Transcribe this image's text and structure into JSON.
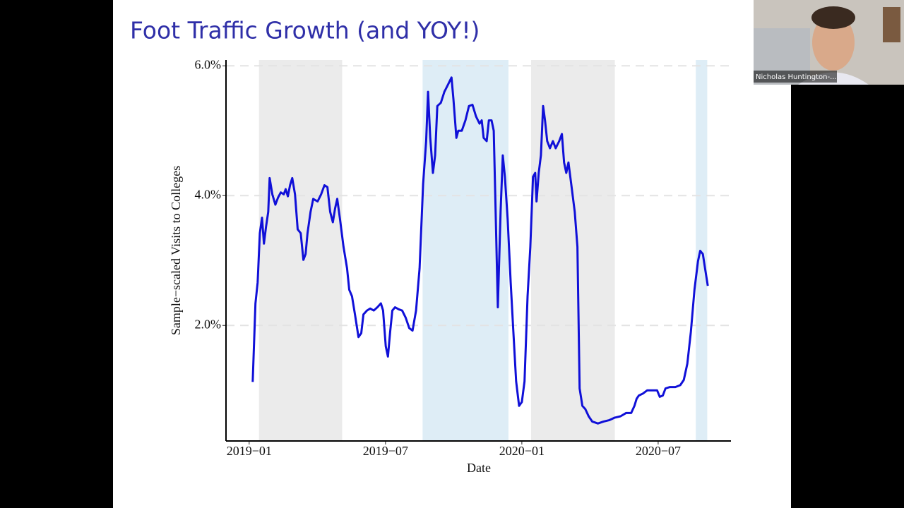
{
  "chart_data": {
    "type": "line",
    "title": "Foot Traffic Growth (and YOY!)",
    "xlabel": "Date",
    "ylabel": "Sample−scaled Visits to Colleges",
    "color": "#1010d8",
    "xlim": [
      2018.915,
      2020.767
    ],
    "xticks": [
      {
        "value": 2019.0,
        "label": "2019−01"
      },
      {
        "value": 2019.5,
        "label": "2019−07"
      },
      {
        "value": 2020.0,
        "label": "2020−01"
      },
      {
        "value": 2020.5,
        "label": "2020−07"
      }
    ],
    "ylim": [
      0.22,
      6.09
    ],
    "yticks": [
      {
        "value": 2,
        "label": "2.0%"
      },
      {
        "value": 4,
        "label": "4.0%"
      },
      {
        "value": 6,
        "label": "6.0%"
      }
    ],
    "grid": true,
    "bands": [
      {
        "start": 2019.036,
        "end": 2019.341,
        "color": "#ebebeb"
      },
      {
        "start": 2019.636,
        "end": 2019.951,
        "color": "#deedf6"
      },
      {
        "start": 2020.034,
        "end": 2020.341,
        "color": "#ebebeb"
      },
      {
        "start": 2020.638,
        "end": 2020.68,
        "color": "#deedf6"
      }
    ],
    "x": [
      2019.013,
      2019.023,
      2019.031,
      2019.039,
      2019.047,
      2019.054,
      2019.062,
      2019.07,
      2019.075,
      2019.085,
      2019.096,
      2019.106,
      2019.116,
      2019.127,
      2019.134,
      2019.142,
      2019.15,
      2019.158,
      2019.168,
      2019.178,
      2019.189,
      2019.199,
      2019.207,
      2019.214,
      2019.225,
      2019.235,
      2019.251,
      2019.264,
      2019.276,
      2019.287,
      2019.297,
      2019.307,
      2019.315,
      2019.323,
      2019.333,
      2019.346,
      2019.359,
      2019.367,
      2019.377,
      2019.388,
      2019.401,
      2019.411,
      2019.419,
      2019.432,
      2019.444,
      2019.457,
      2019.47,
      2019.483,
      2019.491,
      2019.501,
      2019.509,
      2019.517,
      2019.525,
      2019.535,
      2019.548,
      2019.561,
      2019.574,
      2019.587,
      2019.599,
      2019.612,
      2019.625,
      2019.638,
      2019.649,
      2019.656,
      2019.664,
      2019.674,
      2019.682,
      2019.69,
      2019.703,
      2019.716,
      2019.729,
      2019.742,
      2019.749,
      2019.76,
      2019.767,
      2019.78,
      2019.793,
      2019.806,
      2019.819,
      2019.832,
      2019.845,
      2019.853,
      2019.86,
      2019.871,
      2019.879,
      2019.889,
      2019.897,
      2019.904,
      2019.912,
      2019.922,
      2019.93,
      2019.938,
      2019.948,
      2019.959,
      2019.969,
      2019.979,
      2019.99,
      2020.0,
      2020.01,
      2020.021,
      2020.031,
      2020.041,
      2020.049,
      2020.054,
      2020.062,
      2020.07,
      2020.078,
      2020.085,
      2020.093,
      2020.103,
      2020.114,
      2020.124,
      2020.137,
      2020.147,
      2020.155,
      2020.163,
      2020.171,
      2020.181,
      2020.194,
      2020.204,
      2020.212,
      2020.222,
      2020.233,
      2020.245,
      2020.258,
      2020.279,
      2020.3,
      2020.32,
      2020.341,
      2020.362,
      2020.382,
      2020.401,
      2020.413,
      2020.421,
      2020.429,
      2020.444,
      2020.46,
      2020.478,
      2020.496,
      2020.506,
      2020.517,
      2020.527,
      2020.543,
      2020.563,
      2020.581,
      2020.594,
      2020.607,
      2020.62,
      2020.633,
      2020.646,
      2020.654,
      2020.664,
      2020.672,
      2020.682
    ],
    "values": [
      1.13,
      2.34,
      2.66,
      3.42,
      3.66,
      3.26,
      3.53,
      3.75,
      4.27,
      4.02,
      3.86,
      3.97,
      4.05,
      4.02,
      4.1,
      3.99,
      4.16,
      4.27,
      4.02,
      3.48,
      3.42,
      3.01,
      3.1,
      3.42,
      3.75,
      3.95,
      3.91,
      4.02,
      4.16,
      4.13,
      3.75,
      3.59,
      3.8,
      3.95,
      3.64,
      3.21,
      2.88,
      2.55,
      2.45,
      2.17,
      1.82,
      1.88,
      2.17,
      2.23,
      2.26,
      2.23,
      2.28,
      2.34,
      2.23,
      1.68,
      1.52,
      1.9,
      2.23,
      2.28,
      2.25,
      2.23,
      2.12,
      1.96,
      1.92,
      2.23,
      2.88,
      4.18,
      4.84,
      5.6,
      4.89,
      4.35,
      4.62,
      5.38,
      5.43,
      5.6,
      5.71,
      5.82,
      5.49,
      4.89,
      5.0,
      5.0,
      5.16,
      5.38,
      5.4,
      5.22,
      5.11,
      5.16,
      4.89,
      4.84,
      5.16,
      5.16,
      5.0,
      3.75,
      2.28,
      3.75,
      4.62,
      4.29,
      3.64,
      2.66,
      1.9,
      1.14,
      0.76,
      0.82,
      1.14,
      2.45,
      3.21,
      4.29,
      4.35,
      3.91,
      4.35,
      4.62,
      5.38,
      5.16,
      4.84,
      4.73,
      4.84,
      4.73,
      4.84,
      4.95,
      4.51,
      4.35,
      4.51,
      4.18,
      3.75,
      3.21,
      1.03,
      0.76,
      0.71,
      0.6,
      0.52,
      0.49,
      0.52,
      0.54,
      0.58,
      0.6,
      0.65,
      0.65,
      0.76,
      0.87,
      0.92,
      0.95,
      1.0,
      1.0,
      1.0,
      0.9,
      0.92,
      1.03,
      1.05,
      1.05,
      1.08,
      1.16,
      1.41,
      1.9,
      2.55,
      2.99,
      3.15,
      3.1,
      2.88,
      2.61
    ]
  },
  "webcam": {
    "name": "Nicholas Huntington-..."
  }
}
